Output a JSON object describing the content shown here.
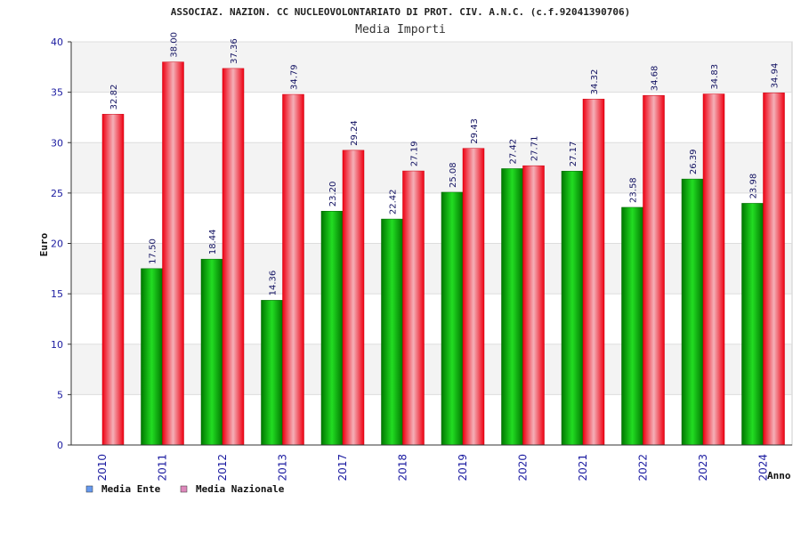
{
  "chart_data": {
    "type": "bar",
    "title": "ASSOCIAZ. NAZION. CC NUCLEOVOLONTARIATO DI PROT. CIV. A.N.C. (c.f.92041390706)",
    "subtitle": "Media Importi",
    "xlabel": "Anno",
    "ylabel": "Euro",
    "ylim": [
      0,
      40
    ],
    "yticks": [
      0,
      5,
      10,
      15,
      20,
      25,
      30,
      35,
      40
    ],
    "grid": true,
    "legend_position": "bottom-left",
    "categories": [
      "2010",
      "2011",
      "2012",
      "2013",
      "2017",
      "2018",
      "2019",
      "2020",
      "2021",
      "2022",
      "2023",
      "2024"
    ],
    "series": [
      {
        "name": "Media Ente",
        "color": "#00aa00",
        "legend_color": "#6699ee",
        "values": [
          null,
          17.5,
          18.44,
          14.36,
          23.2,
          22.42,
          25.08,
          27.42,
          27.17,
          23.58,
          26.39,
          23.98
        ],
        "labels": [
          "",
          "17.50",
          "18.44",
          "14.36",
          "23.20",
          "22.42",
          "25.08",
          "27.42",
          "27.17",
          "23.58",
          "26.39",
          "23.98"
        ]
      },
      {
        "name": "Media Nazionale",
        "color": "#ee1122",
        "legend_color": "#dd88bb",
        "values": [
          32.82,
          38.0,
          37.36,
          34.79,
          29.24,
          27.19,
          29.43,
          27.71,
          34.32,
          34.68,
          34.83,
          34.94
        ],
        "labels": [
          "32.82",
          "38.00",
          "37.36",
          "34.79",
          "29.24",
          "27.19",
          "29.43",
          "27.71",
          "34.32",
          "34.68",
          "34.83",
          "34.94"
        ]
      }
    ]
  }
}
